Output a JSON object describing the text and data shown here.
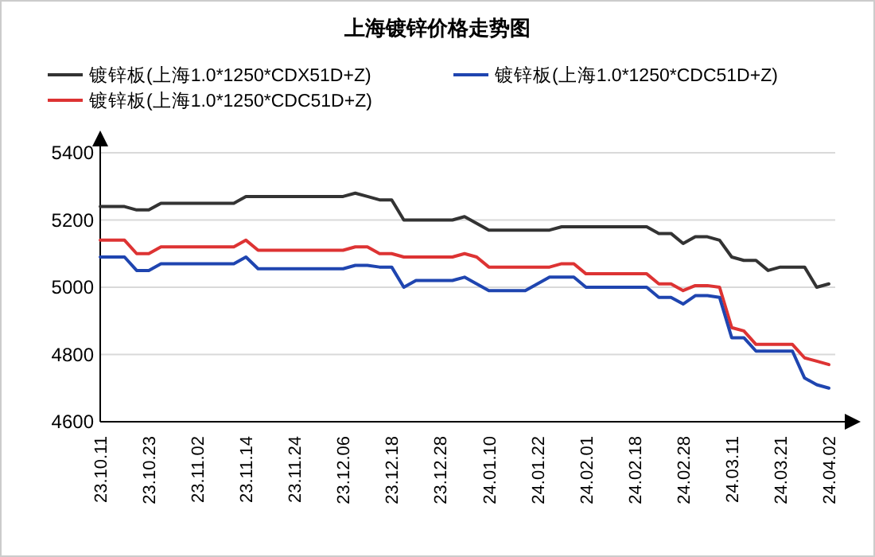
{
  "chart_data": {
    "type": "line",
    "title": "上海镀锌价格走势图",
    "categories": [
      "23.10.11",
      null,
      null,
      null,
      "23.10.23",
      null,
      null,
      null,
      "23.11.02",
      null,
      null,
      null,
      "23.11.14",
      null,
      null,
      null,
      "23.11.24",
      null,
      null,
      null,
      "23.12.06",
      null,
      null,
      null,
      "23.12.18",
      null,
      null,
      null,
      "23.12.28",
      null,
      null,
      null,
      "24.01.10",
      null,
      null,
      null,
      "24.01.22",
      null,
      null,
      null,
      "24.02.01",
      null,
      null,
      null,
      "24.02.18",
      null,
      null,
      null,
      "24.02.28",
      null,
      null,
      null,
      "24.03.11",
      null,
      null,
      null,
      "24.03.21",
      null,
      null,
      null,
      "24.04.02"
    ],
    "series": [
      {
        "name": "镀锌板(上海1.0*1250*CDX51D+Z)",
        "color": "#333333",
        "values": [
          5240,
          5240,
          5240,
          5230,
          5230,
          5250,
          5250,
          5250,
          5250,
          5250,
          5250,
          5250,
          5270,
          5270,
          5270,
          5270,
          5270,
          5270,
          5270,
          5270,
          5270,
          5280,
          5270,
          5260,
          5260,
          5200,
          5200,
          5200,
          5200,
          5200,
          5210,
          5190,
          5170,
          5170,
          5170,
          5170,
          5170,
          5170,
          5180,
          5180,
          5180,
          5180,
          5180,
          5180,
          5180,
          5180,
          5160,
          5160,
          5130,
          5150,
          5150,
          5140,
          5090,
          5080,
          5080,
          5050,
          5060,
          5060,
          5060,
          5000,
          5010
        ]
      },
      {
        "name": "镀锌板(上海1.0*1250*CDC51D+Z)",
        "color": "#dd3333",
        "values": [
          5140,
          5140,
          5140,
          5100,
          5100,
          5120,
          5120,
          5120,
          5120,
          5120,
          5120,
          5120,
          5140,
          5110,
          5110,
          5110,
          5110,
          5110,
          5110,
          5110,
          5110,
          5120,
          5120,
          5100,
          5100,
          5090,
          5090,
          5090,
          5090,
          5090,
          5100,
          5090,
          5060,
          5060,
          5060,
          5060,
          5060,
          5060,
          5070,
          5070,
          5040,
          5040,
          5040,
          5040,
          5040,
          5040,
          5010,
          5010,
          4990,
          5005,
          5005,
          5000,
          4880,
          4870,
          4830,
          4830,
          4830,
          4830,
          4790,
          4780,
          4770
        ]
      },
      {
        "name": "镀锌板(上海1.0*1250*CDC51D+Z)",
        "color": "#1f45b0",
        "values": [
          5090,
          5090,
          5090,
          5050,
          5050,
          5070,
          5070,
          5070,
          5070,
          5070,
          5070,
          5070,
          5090,
          5055,
          5055,
          5055,
          5055,
          5055,
          5055,
          5055,
          5055,
          5065,
          5065,
          5060,
          5060,
          5000,
          5020,
          5020,
          5020,
          5020,
          5030,
          5010,
          4990,
          4990,
          4990,
          4990,
          5010,
          5030,
          5030,
          5030,
          5000,
          5000,
          5000,
          5000,
          5000,
          5000,
          4970,
          4970,
          4950,
          4975,
          4975,
          4970,
          4850,
          4850,
          4810,
          4810,
          4810,
          4810,
          4730,
          4710,
          4700
        ]
      }
    ],
    "ylim": [
      4600,
      5400
    ],
    "yticks": [
      4600,
      4800,
      5000,
      5200,
      5400
    ],
    "grid": "y",
    "legend": "top",
    "marker": "none",
    "line_style": "solid"
  }
}
